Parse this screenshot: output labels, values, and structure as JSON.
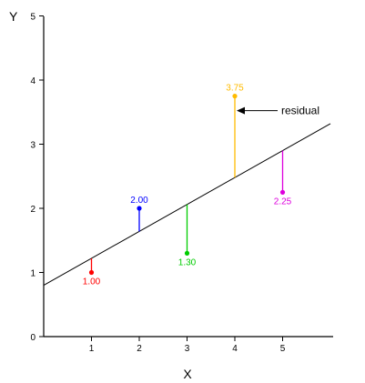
{
  "chart_data": {
    "type": "scatter",
    "title": "",
    "xlabel": "X",
    "ylabel": "Y",
    "xlim": [
      0,
      6
    ],
    "ylim": [
      0,
      5
    ],
    "x_ticks": [
      "1",
      "2",
      "3",
      "4",
      "5"
    ],
    "y_ticks": [
      "0",
      "1",
      "2",
      "3",
      "4",
      "5"
    ],
    "grid": false,
    "regression_line": {
      "intercept": 0.8,
      "slope": 0.42
    },
    "points": [
      {
        "x": 1,
        "y": 1.0,
        "label": "1.00",
        "color": "#ff0000"
      },
      {
        "x": 2,
        "y": 2.0,
        "label": "2.00",
        "color": "#0000ff"
      },
      {
        "x": 3,
        "y": 1.3,
        "label": "1.30",
        "color": "#00cc00"
      },
      {
        "x": 4,
        "y": 3.75,
        "label": "3.75",
        "color": "#ffbb00"
      },
      {
        "x": 5,
        "y": 2.25,
        "label": "2.25",
        "color": "#dd00dd"
      }
    ],
    "annotation": {
      "text": "residual",
      "point_index": 3
    }
  }
}
